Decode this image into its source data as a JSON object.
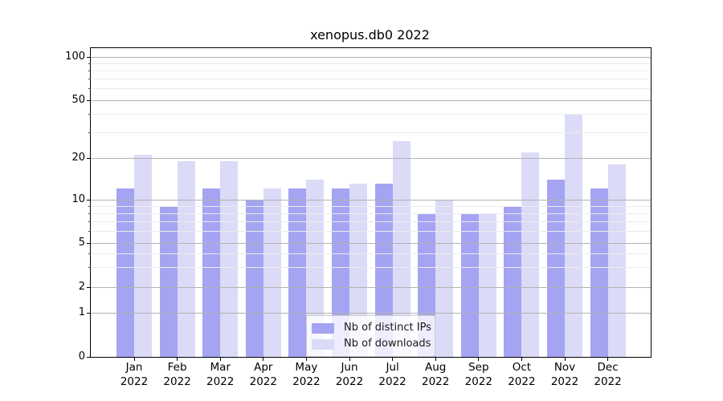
{
  "chart_data": {
    "type": "bar",
    "title": "xenopus.db0 2022",
    "categories": [
      "Jan",
      "Feb",
      "Mar",
      "Apr",
      "May",
      "Jun",
      "Jul",
      "Aug",
      "Sep",
      "Oct",
      "Nov",
      "Dec"
    ],
    "category_year": "2022",
    "series": [
      {
        "name": "Nb of distinct IPs",
        "color": "#a4a4f2",
        "values": [
          12,
          9,
          12,
          10,
          12,
          12,
          13,
          8,
          8,
          9,
          14,
          12
        ]
      },
      {
        "name": "Nb of downloads",
        "color": "#dbdbf8",
        "values": [
          21,
          19,
          19,
          12,
          14,
          13,
          26,
          10,
          8,
          22,
          40,
          18
        ]
      }
    ],
    "xlabel": "",
    "ylabel": "",
    "yscale": "symlog",
    "ylim": [
      0,
      112
    ],
    "y_major_ticks": [
      0,
      1,
      2,
      5,
      10,
      20,
      50,
      100
    ],
    "y_minor_ticks": [
      3,
      4,
      6,
      7,
      8,
      9,
      30,
      40,
      60,
      70,
      80,
      90
    ],
    "grid": "major+minor, horizontal only, drawn over bars",
    "legend": {
      "position": "lower center inside plot",
      "entries": [
        "Nb of distinct IPs",
        "Nb of downloads"
      ]
    },
    "colors": {
      "background": "#ffffff",
      "major_grid": "#b2b2b2",
      "minor_grid": "#ebebeb",
      "spine": "#000000",
      "text": "#000000"
    }
  }
}
